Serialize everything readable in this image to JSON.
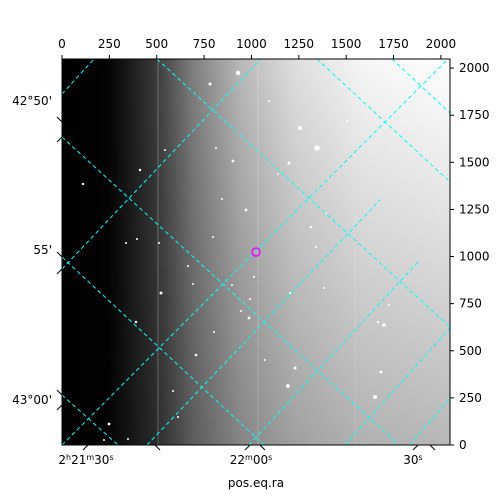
{
  "chart_data": {
    "type": "image",
    "xlabel": "pos.eq.ra",
    "top_ticks": [
      0,
      250,
      500,
      750,
      1000,
      1250,
      1500,
      1750,
      2000
    ],
    "right_ticks": [
      0,
      250,
      500,
      750,
      1000,
      1250,
      1500,
      1750,
      2000
    ],
    "xlim": [
      0,
      2048
    ],
    "ylim": [
      0,
      2048
    ],
    "ra_tick_labels": [
      {
        "h": "2",
        "m": "21",
        "s": "30"
      },
      {
        "h": "",
        "m": "22",
        "s": "00"
      },
      {
        "h": "",
        "m": "",
        "s": "30"
      }
    ],
    "dec_tick_labels": [
      "42°50'",
      "55'",
      "43°00'"
    ],
    "grid_color": "#00ffff",
    "marker": {
      "shape": "circle",
      "color": "#ff00ff",
      "x": 1024,
      "y": 1024
    }
  }
}
